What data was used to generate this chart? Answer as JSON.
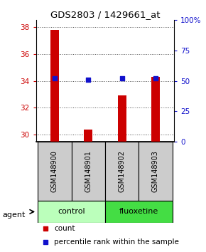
{
  "title": "GDS2803 / 1429661_at",
  "samples": [
    "GSM148900",
    "GSM148901",
    "GSM148902",
    "GSM148903"
  ],
  "counts": [
    37.8,
    30.4,
    32.9,
    34.3
  ],
  "percentiles": [
    52,
    51,
    52,
    52
  ],
  "ylim_left": [
    29.5,
    38.5
  ],
  "ylim_right": [
    0,
    100
  ],
  "yticks_left": [
    30,
    32,
    34,
    36,
    38
  ],
  "yticks_right": [
    0,
    25,
    50,
    75,
    100
  ],
  "ytick_labels_right": [
    "0",
    "25",
    "50",
    "75",
    "100%"
  ],
  "bar_color": "#cc0000",
  "dot_color": "#1111cc",
  "groups": [
    {
      "label": "control",
      "indices": [
        0,
        1
      ],
      "color": "#bbffbb"
    },
    {
      "label": "fluoxetine",
      "indices": [
        2,
        3
      ],
      "color": "#44dd44"
    }
  ],
  "agent_label": "agent",
  "legend_count_label": "count",
  "legend_pct_label": "percentile rank within the sample",
  "grid_color": "#555555",
  "sample_box_color": "#cccccc",
  "bar_width": 0.25,
  "bar_bottom": 29.5
}
